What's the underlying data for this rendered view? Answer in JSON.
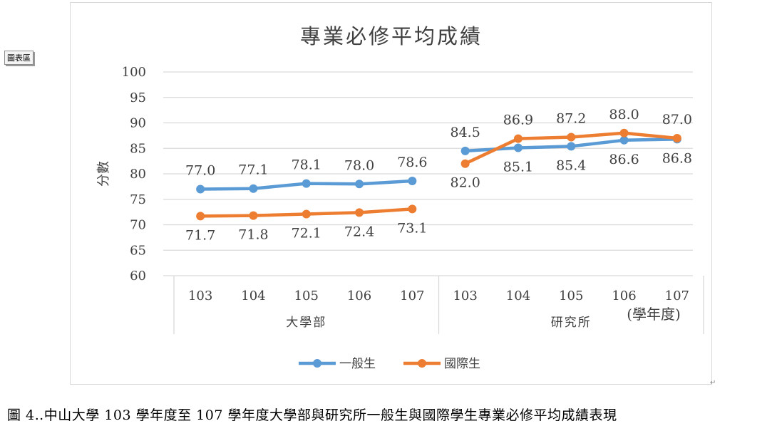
{
  "ui": {
    "area_tag": "圖表區",
    "caption": "圖 4‥中山大學 103 學年度至 107 學年度大學部與研究所一般生與國際學生專業必修平均成績表現",
    "para_mark": "↵"
  },
  "chart_data": {
    "type": "line",
    "title": "專業必修平均成績",
    "ylabel": "分數",
    "xlabel": "(學年度)",
    "ylim": [
      60,
      100
    ],
    "y_ticks": [
      60,
      65,
      70,
      75,
      80,
      85,
      90,
      95,
      100
    ],
    "grid": true,
    "legend_position": "bottom",
    "groups": [
      {
        "name": "大學部",
        "categories": [
          "103",
          "104",
          "105",
          "106",
          "107"
        ]
      },
      {
        "name": "研究所",
        "categories": [
          "103",
          "104",
          "105",
          "106",
          "107"
        ]
      }
    ],
    "series": [
      {
        "name": "一般生",
        "color": "#5b9bd5",
        "segments": [
          [
            77.0,
            77.1,
            78.1,
            78.0,
            78.6
          ],
          [
            84.5,
            85.1,
            85.4,
            86.6,
            86.8
          ]
        ],
        "label_pos": [
          [
            "above",
            "above",
            "above",
            "above",
            "above"
          ],
          [
            "above",
            "below",
            "below",
            "below",
            "below"
          ]
        ]
      },
      {
        "name": "國際生",
        "color": "#ed7d31",
        "segments": [
          [
            71.7,
            71.8,
            72.1,
            72.4,
            73.1
          ],
          [
            82.0,
            86.9,
            87.2,
            88.0,
            87.0
          ]
        ],
        "label_pos": [
          [
            "below",
            "below",
            "below",
            "below",
            "below"
          ],
          [
            "below",
            "above",
            "above",
            "above",
            "above"
          ]
        ]
      }
    ]
  }
}
